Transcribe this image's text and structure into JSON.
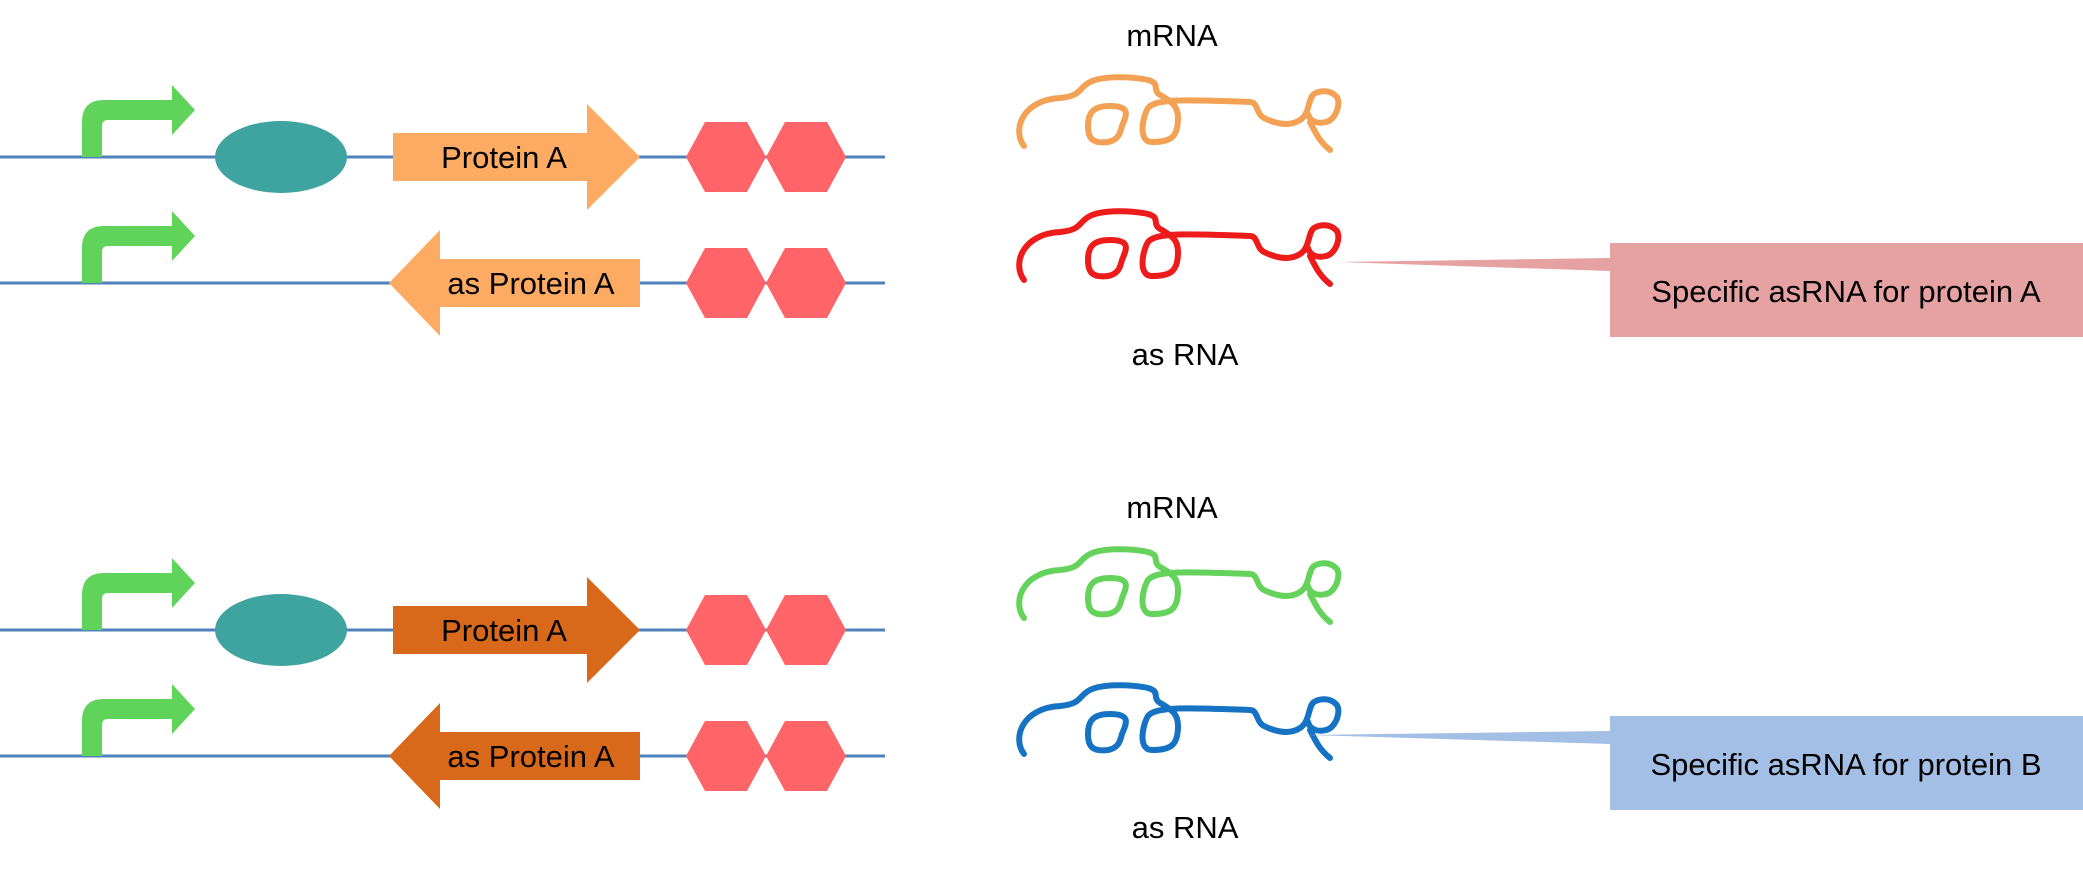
{
  "colors": {
    "dna_line": "#4f81bd",
    "promoter": "#5fd35a",
    "operator": "#3fa3a0",
    "terminator": "#ff6468",
    "gene_set1": "#fdab63",
    "gene_set2": "#d9691a",
    "mrna_set1": "#f3a154",
    "asrna_set1": "#ee1b1b",
    "mrna_set2": "#65d35b",
    "asrna_set2": "#1672c2",
    "callout_set1": "#e6a2a2",
    "callout_set2": "#a3bfe6"
  },
  "icons": {
    "promoter": "bent-arrow",
    "operator": "ellipse",
    "terminator": "double-hexagon",
    "transcript": "squiggle"
  },
  "set1": {
    "forward_gene_label": "Protein A",
    "reverse_gene_label": "as Protein A",
    "mrna_label": "mRNA",
    "asrna_label": "as RNA",
    "callout_label": "Specific asRNA for protein A"
  },
  "set2": {
    "forward_gene_label": "Protein A",
    "reverse_gene_label": "as Protein A",
    "mrna_label": "mRNA",
    "asrna_label": "as RNA",
    "callout_label": "Specific asRNA for protein B"
  }
}
